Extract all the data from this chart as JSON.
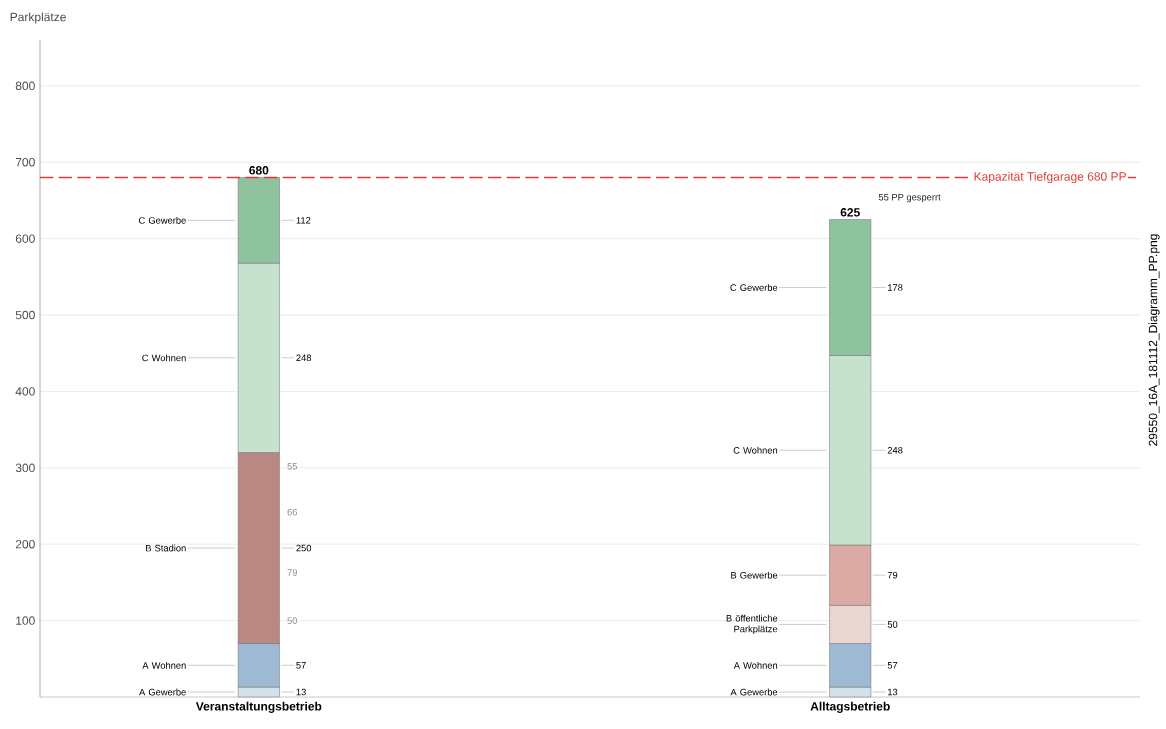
{
  "chart_data": {
    "type": "bar",
    "stacked": true,
    "ylabel": "Parkplätze",
    "categories": [
      "Veranstaltungsbetrieb",
      "Alltagsbetrieb"
    ],
    "series": [
      {
        "name": "A Gewerbe",
        "color": "#d3e2ea",
        "values": [
          13,
          13
        ]
      },
      {
        "name": "A Wohnen",
        "color": "#9db9d3",
        "values": [
          57,
          57
        ]
      },
      {
        "name": "B Stadion",
        "color": "#b98883",
        "values": [
          250,
          null
        ]
      },
      {
        "name": "B öffentliche Parkplätze",
        "color": "#ead6d1",
        "values": [
          null,
          50
        ]
      },
      {
        "name": "B Gewerbe",
        "color": "#dbaaa5",
        "values": [
          null,
          79
        ]
      },
      {
        "name": "C Wohnen",
        "color": "#c6e2cf",
        "values": [
          248,
          248
        ]
      },
      {
        "name": "C Gewerbe",
        "color": "#8fc3a0",
        "values": [
          112,
          178
        ]
      }
    ],
    "data_labels": true,
    "totals": [
      "680",
      "625"
    ],
    "ylim": [
      0,
      860
    ],
    "yticks": [
      100,
      200,
      300,
      400,
      500,
      600,
      700,
      800
    ],
    "grid": "y",
    "ref_lines": [
      {
        "axis": "y",
        "value": 680,
        "label": "Kapazität Tiefgarage 680 PP",
        "color": "#e03a3a",
        "line_style": "dashed"
      }
    ],
    "annotations": [
      "55",
      "66",
      "79",
      "50",
      "55 PP gesperrt",
      "29550_16A_181112_Diagramm_PP.png"
    ]
  }
}
